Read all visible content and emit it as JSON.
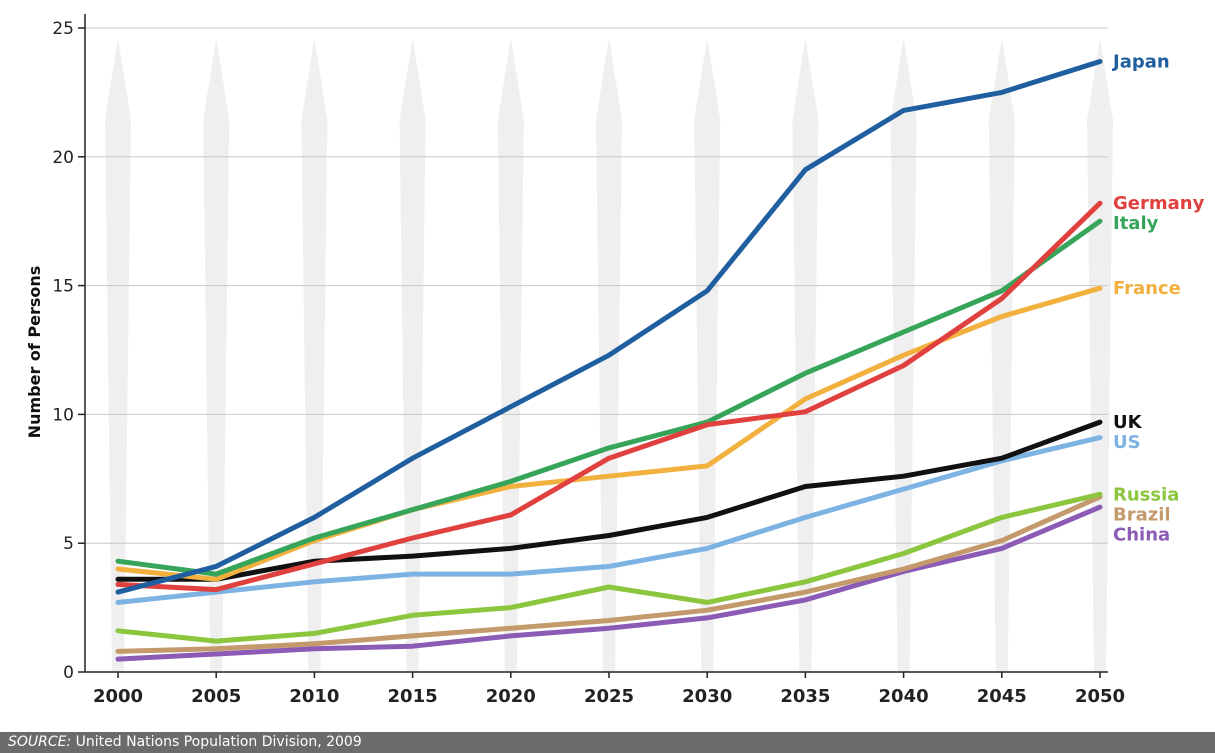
{
  "chart_data": {
    "type": "line",
    "xlabel": "",
    "ylabel": "Number of Persons",
    "ylim": [
      0,
      25
    ],
    "yticks": [
      0,
      5,
      10,
      15,
      20,
      25
    ],
    "x": [
      2000,
      2005,
      2010,
      2015,
      2020,
      2025,
      2030,
      2035,
      2040,
      2045,
      2050
    ],
    "grid": "horizontal",
    "series": [
      {
        "name": "Japan",
        "color": "#1f5fa0",
        "values": [
          3.1,
          4.1,
          6.0,
          8.3,
          10.3,
          12.3,
          14.8,
          19.5,
          21.8,
          22.5,
          23.7
        ]
      },
      {
        "name": "Germany",
        "color": "#e0413e",
        "values": [
          3.4,
          3.2,
          4.2,
          5.2,
          6.1,
          8.3,
          9.6,
          10.1,
          11.9,
          14.5,
          18.2
        ]
      },
      {
        "name": "Italy",
        "color": "#36a55a",
        "values": [
          4.3,
          3.8,
          5.2,
          6.3,
          7.4,
          8.7,
          9.7,
          11.6,
          13.2,
          14.8,
          17.5
        ]
      },
      {
        "name": "France",
        "color": "#f2b13f",
        "values": [
          4.0,
          3.6,
          5.1,
          6.3,
          7.2,
          7.6,
          8.0,
          10.6,
          12.3,
          13.8,
          14.9
        ]
      },
      {
        "name": "UK",
        "color": "#111111",
        "values": [
          3.6,
          3.6,
          4.3,
          4.5,
          4.8,
          5.3,
          6.0,
          7.2,
          7.6,
          8.3,
          9.7
        ]
      },
      {
        "name": "US",
        "color": "#7db3e3",
        "values": [
          2.7,
          3.1,
          3.5,
          3.8,
          3.8,
          4.1,
          4.8,
          6.0,
          7.1,
          8.2,
          9.1
        ]
      },
      {
        "name": "Russia",
        "color": "#8cc63f",
        "values": [
          1.6,
          1.2,
          1.5,
          2.2,
          2.5,
          3.3,
          2.7,
          3.5,
          4.6,
          6.0,
          6.9
        ]
      },
      {
        "name": "Brazil",
        "color": "#c49a6c",
        "values": [
          0.8,
          0.9,
          1.1,
          1.4,
          1.7,
          2.0,
          2.4,
          3.1,
          4.0,
          5.1,
          6.8
        ]
      },
      {
        "name": "China",
        "color": "#8b5bb5",
        "values": [
          0.5,
          0.7,
          0.9,
          1.0,
          1.4,
          1.7,
          2.1,
          2.8,
          3.9,
          4.8,
          6.4
        ]
      }
    ]
  },
  "source": {
    "prefix": "SOURCE:",
    "text": " United Nations Population Division, 2009"
  }
}
